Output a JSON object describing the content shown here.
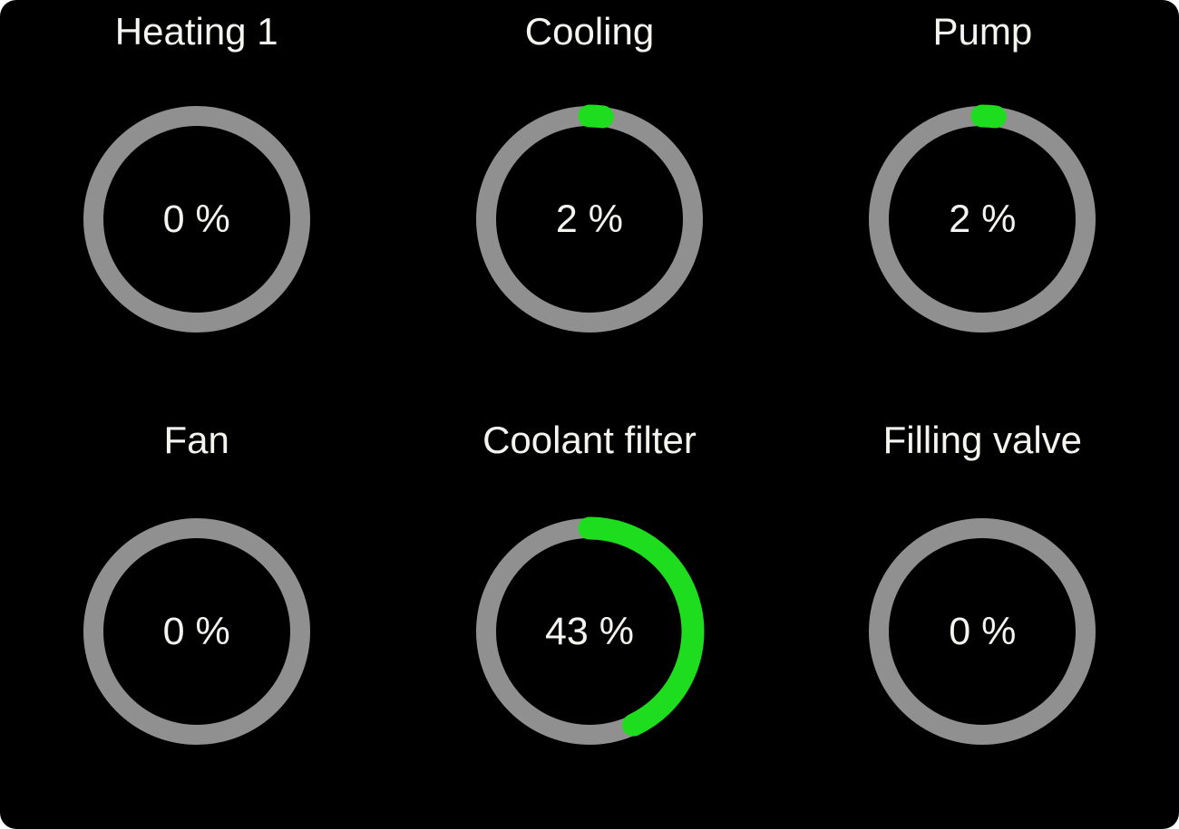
{
  "panel": {
    "background": "#000000",
    "page_background": "#ffffff"
  },
  "colors": {
    "track": "#909090",
    "progress": "#1edc1e",
    "text": "#f5f4ef"
  },
  "gauges": [
    {
      "id": "heating-1",
      "label": "Heating 1",
      "percent": 0,
      "value_text": "0 %"
    },
    {
      "id": "cooling",
      "label": "Cooling",
      "percent": 2,
      "value_text": "2 %"
    },
    {
      "id": "pump",
      "label": "Pump",
      "percent": 2,
      "value_text": "2 %"
    },
    {
      "id": "fan",
      "label": "Fan",
      "percent": 0,
      "value_text": "0 %"
    },
    {
      "id": "coolant-filter",
      "label": "Coolant filter",
      "percent": 43,
      "value_text": "43 %"
    },
    {
      "id": "filling-valve",
      "label": "Filling valve",
      "percent": 0,
      "value_text": "0 %"
    }
  ]
}
